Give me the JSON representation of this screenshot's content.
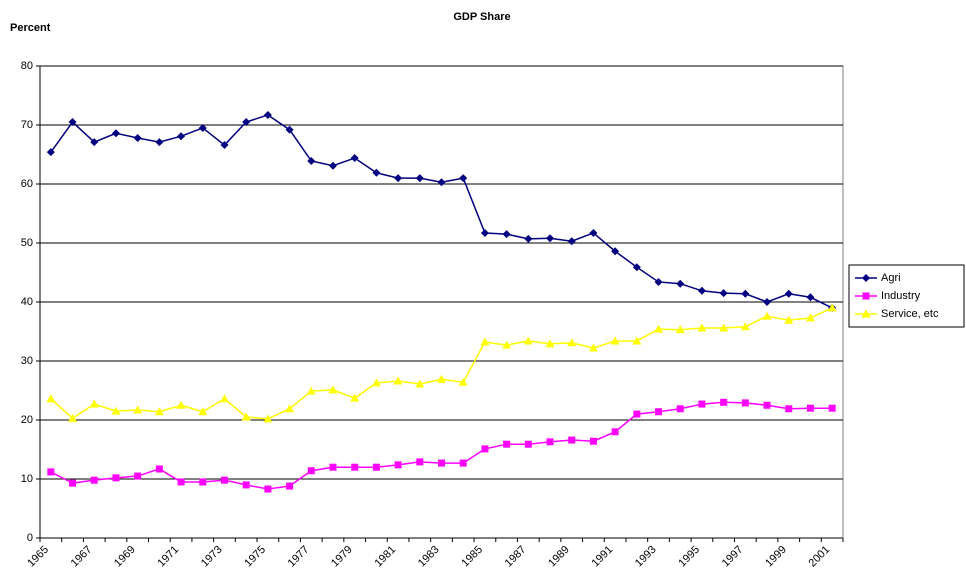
{
  "chart_data": {
    "type": "line",
    "title": "GDP Share",
    "y_label": "Percent",
    "categories": [
      "1965",
      null,
      "1967",
      null,
      "1969",
      null,
      "1971",
      null,
      "1973",
      null,
      "1975",
      null,
      "1977",
      null,
      "1979",
      null,
      "1981",
      null,
      "1983",
      null,
      "1985",
      null,
      "1987",
      null,
      "1989",
      null,
      "1991",
      null,
      "1993",
      null,
      "1995",
      null,
      "1997",
      null,
      "1999",
      null,
      "2001"
    ],
    "series": [
      {
        "name": "Agri",
        "color": "#000080",
        "marker": "diamond",
        "values": [
          65.4,
          70.5,
          67.1,
          68.6,
          67.8,
          67.1,
          68.1,
          69.5,
          66.6,
          70.5,
          71.7,
          69.2,
          63.9,
          63.1,
          64.4,
          61.9,
          61.0,
          61.0,
          60.3,
          61.0,
          51.7,
          51.5,
          50.7,
          50.8,
          50.3,
          51.7,
          48.6,
          45.9,
          43.4,
          43.1,
          41.9,
          41.5,
          41.4,
          40.0,
          41.4,
          40.8,
          39.0
        ]
      },
      {
        "name": "Industry",
        "color": "#ff00ff",
        "marker": "square",
        "values": [
          11.2,
          9.3,
          9.8,
          10.2,
          10.5,
          11.7,
          9.5,
          9.5,
          9.8,
          9.0,
          8.3,
          8.8,
          11.4,
          12.0,
          12.0,
          12.0,
          12.4,
          12.9,
          12.7,
          12.7,
          15.1,
          15.9,
          15.9,
          16.3,
          16.6,
          16.4,
          18.0,
          21.0,
          21.4,
          21.9,
          22.7,
          23.0,
          22.9,
          22.5,
          21.9,
          22.0,
          22.0
        ]
      },
      {
        "name": "Service, etc",
        "color": "#ffff00",
        "marker": "triangle",
        "values": [
          23.6,
          20.3,
          22.7,
          21.5,
          21.7,
          21.4,
          22.5,
          21.4,
          23.6,
          20.5,
          20.2,
          21.9,
          24.9,
          25.1,
          23.7,
          26.3,
          26.6,
          26.1,
          26.9,
          26.4,
          33.2,
          32.7,
          33.4,
          32.9,
          33.1,
          32.2,
          33.4,
          33.4,
          35.4,
          35.3,
          35.6,
          35.6,
          35.8,
          37.6,
          36.9,
          37.3,
          39.0
        ]
      }
    ],
    "ylim": [
      0,
      80
    ],
    "yticks": [
      0,
      10,
      20,
      30,
      40,
      50,
      60,
      70,
      80
    ],
    "grid": true,
    "legend": "right"
  }
}
